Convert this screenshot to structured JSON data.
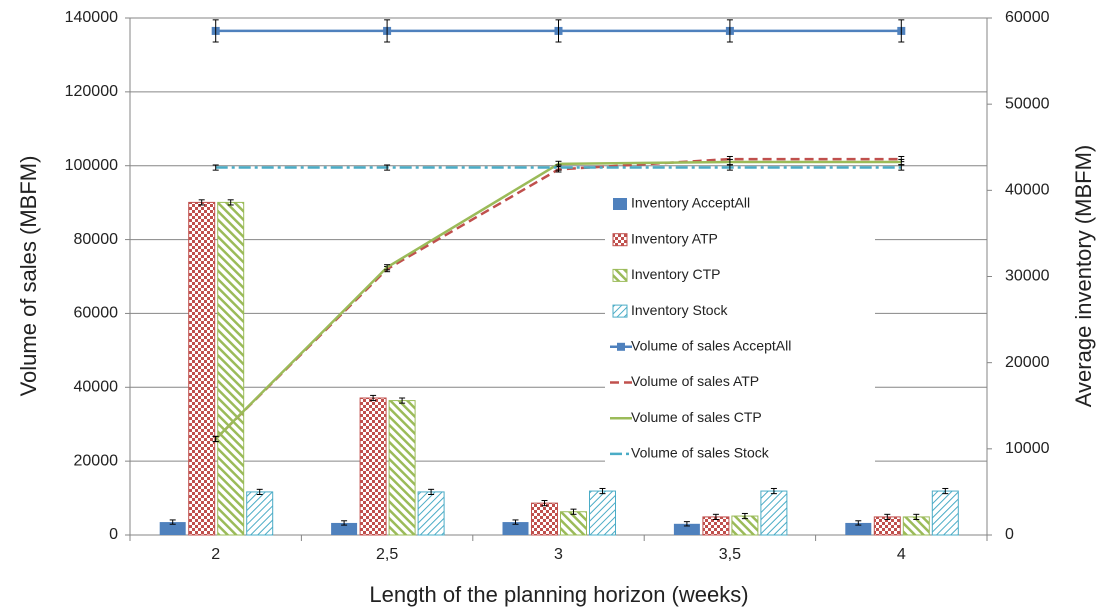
{
  "chart_data": {
    "type": "bar",
    "x_label": "Length of the planning horizon (weeks)",
    "y_label": "Volume of sales (MBFM)",
    "y2_label": "Average inventory (MBFM)",
    "categories": [
      "2",
      "2,5",
      "3",
      "3,5",
      "4"
    ],
    "ylim": [
      0,
      140000
    ],
    "yticks": [
      0,
      20000,
      40000,
      60000,
      80000,
      100000,
      120000,
      140000
    ],
    "y2lim": [
      0,
      60000
    ],
    "y2ticks": [
      0,
      10000,
      20000,
      30000,
      40000,
      50000,
      60000
    ],
    "grid": true,
    "legend": "right",
    "series": [
      {
        "name": "Inventory AcceptAll",
        "type": "bar",
        "axis": "y2",
        "color": "#4f81bd",
        "pattern": "solid",
        "values": [
          1500,
          1400,
          1500,
          1300,
          1400
        ],
        "errors": [
          250,
          250,
          250,
          250,
          250
        ]
      },
      {
        "name": "Inventory ATP",
        "type": "bar",
        "axis": "y2",
        "color": "#c0504d",
        "pattern": "checker",
        "values": [
          38600,
          15900,
          3700,
          2100,
          2100
        ],
        "errors": [
          300,
          300,
          300,
          300,
          300
        ]
      },
      {
        "name": "Inventory CTP",
        "type": "bar",
        "axis": "y2",
        "color": "#9bbb59",
        "pattern": "diagonal",
        "values": [
          38600,
          15600,
          2700,
          2200,
          2100
        ],
        "errors": [
          300,
          300,
          300,
          300,
          300
        ]
      },
      {
        "name": "Inventory Stock",
        "type": "bar",
        "axis": "y2",
        "color": "#4bacc6",
        "pattern": "hatch",
        "values": [
          5000,
          5000,
          5100,
          5100,
          5100
        ],
        "errors": [
          300,
          300,
          300,
          300,
          300
        ]
      },
      {
        "name": "Volume of sales AcceptAll",
        "type": "line",
        "color": "#4f81bd",
        "style": "solid",
        "marker": "square",
        "values": [
          136500,
          136500,
          136500,
          136500,
          136500
        ],
        "errors": [
          3000,
          3000,
          3000,
          3000,
          3000
        ]
      },
      {
        "name": "Volume of sales ATP",
        "type": "line",
        "color": "#c0504d",
        "style": "dashed",
        "values": [
          26000,
          72000,
          99000,
          101800,
          101800
        ],
        "errors": [
          700,
          700,
          700,
          700,
          700
        ]
      },
      {
        "name": "Volume of sales CTP",
        "type": "line",
        "color": "#9bbb59",
        "style": "solid",
        "values": [
          26000,
          72500,
          100500,
          101000,
          101000
        ],
        "errors": [
          700,
          700,
          700,
          700,
          700
        ]
      },
      {
        "name": "Volume of sales Stock",
        "type": "line",
        "color": "#4bacc6",
        "style": "dashdot",
        "values": [
          99500,
          99500,
          99500,
          99500,
          99500
        ],
        "errors": [
          700,
          700,
          700,
          700,
          700
        ]
      }
    ]
  }
}
